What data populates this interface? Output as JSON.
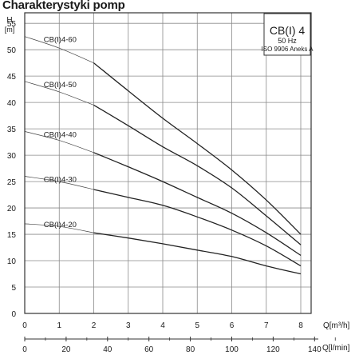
{
  "page_title": "Charakterystyki pomp",
  "chart_data": {
    "type": "line",
    "title": "Charakterystyki pomp",
    "ylabel": "H",
    "yunit": "[m]",
    "xlabel": "Q[m³/h]",
    "x2label": "Q[l/min]",
    "xlim": [
      0,
      9
    ],
    "ylim": [
      0,
      57
    ],
    "x_ticks": [
      0,
      1,
      2,
      3,
      4,
      5,
      6,
      7,
      8
    ],
    "x2_ticks": [
      0,
      20,
      40,
      60,
      80,
      100,
      120,
      140
    ],
    "y_ticks": [
      0,
      5,
      10,
      15,
      20,
      25,
      30,
      35,
      40,
      45,
      50,
      55
    ],
    "grid": true,
    "info_box": {
      "model": "CB(I) 4",
      "frequency": "50 Hz",
      "standard": "ISO 9906 Aneks  A"
    },
    "series": [
      {
        "name": "CB(I)4-60",
        "x": [
          0,
          1,
          2,
          3,
          4,
          5,
          6,
          7,
          8
        ],
        "thin": [
          52.5,
          50.3,
          47.5
        ],
        "y": [
          52.5,
          50.3,
          47.5,
          42.2,
          37.0,
          32.2,
          27.2,
          21.5,
          15.0
        ]
      },
      {
        "name": "CB(I)4-50",
        "x": [
          0,
          1,
          2,
          3,
          4,
          5,
          6,
          7,
          8
        ],
        "thin": [
          44.0,
          42.0,
          39.5
        ],
        "y": [
          44.0,
          42.0,
          39.5,
          35.6,
          31.6,
          28.0,
          23.8,
          18.5,
          13.0
        ]
      },
      {
        "name": "CB(I)4-40",
        "x": [
          0,
          1,
          2,
          3,
          4,
          5,
          6,
          7,
          8
        ],
        "thin": [
          34.5,
          32.8,
          30.5
        ],
        "y": [
          34.5,
          32.8,
          30.5,
          27.8,
          25.0,
          22.0,
          19.0,
          15.3,
          11.0
        ]
      },
      {
        "name": "CB(I)4-30",
        "x": [
          0,
          1,
          2,
          3,
          4,
          5,
          6,
          7,
          8
        ],
        "thin": [
          26.0,
          25.0,
          23.5
        ],
        "y": [
          26.0,
          25.0,
          23.5,
          22.0,
          20.5,
          18.3,
          15.8,
          12.8,
          9.0
        ]
      },
      {
        "name": "CB(I)4-20",
        "x": [
          0,
          1,
          2,
          3,
          4,
          5,
          6,
          7,
          8
        ],
        "thin": [
          17.0,
          16.5,
          15.3
        ],
        "y": [
          17.0,
          16.5,
          15.3,
          14.3,
          13.2,
          12.0,
          10.8,
          9.0,
          7.5
        ]
      }
    ]
  }
}
